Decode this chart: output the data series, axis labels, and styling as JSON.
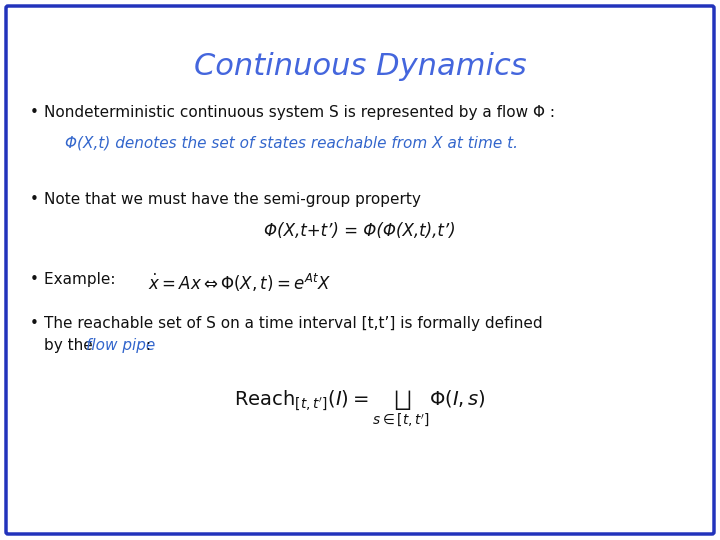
{
  "title": "Continuous Dynamics",
  "title_color": "#4466DD",
  "title_fontsize": 22,
  "background_color": "#FFFFFF",
  "border_color": "#2233BB",
  "border_linewidth": 2.5,
  "text_color": "#111111",
  "blue_color": "#3366CC",
  "bullet1": "Nondeterministic continuous system S is represented by a flow Φ :",
  "bullet1_indent": "Φ(X,t) denotes the set of states reachable from X at time t.",
  "bullet2": "Note that we must have the semi-group property",
  "bullet2_formula": "Φ(X,t+t’) = Φ(Φ(X,t),t’)",
  "bullet3_example": "Example:  ",
  "bullet3_formula": "$\\dot{x} = Ax \\Leftrightarrow \\Phi(X,t) = e^{At}X$",
  "bullet4_line1": "The reachable set of S on a time interval [t,t’] is formally defined",
  "bullet4_line2_pre": "by the ",
  "bullet4_flowpipe": "flow pipe",
  "bullet4_line2_post": " :",
  "reach_formula": "$\\mathrm{Reach}_{[t,t']}(I) = \\bigsqcup_{s\\in[t,t']} \\Phi(I,s)$",
  "fontsize_body": 11,
  "fontsize_indented": 11,
  "fontsize_formula_inline": 11,
  "fontsize_formula_block": 12
}
